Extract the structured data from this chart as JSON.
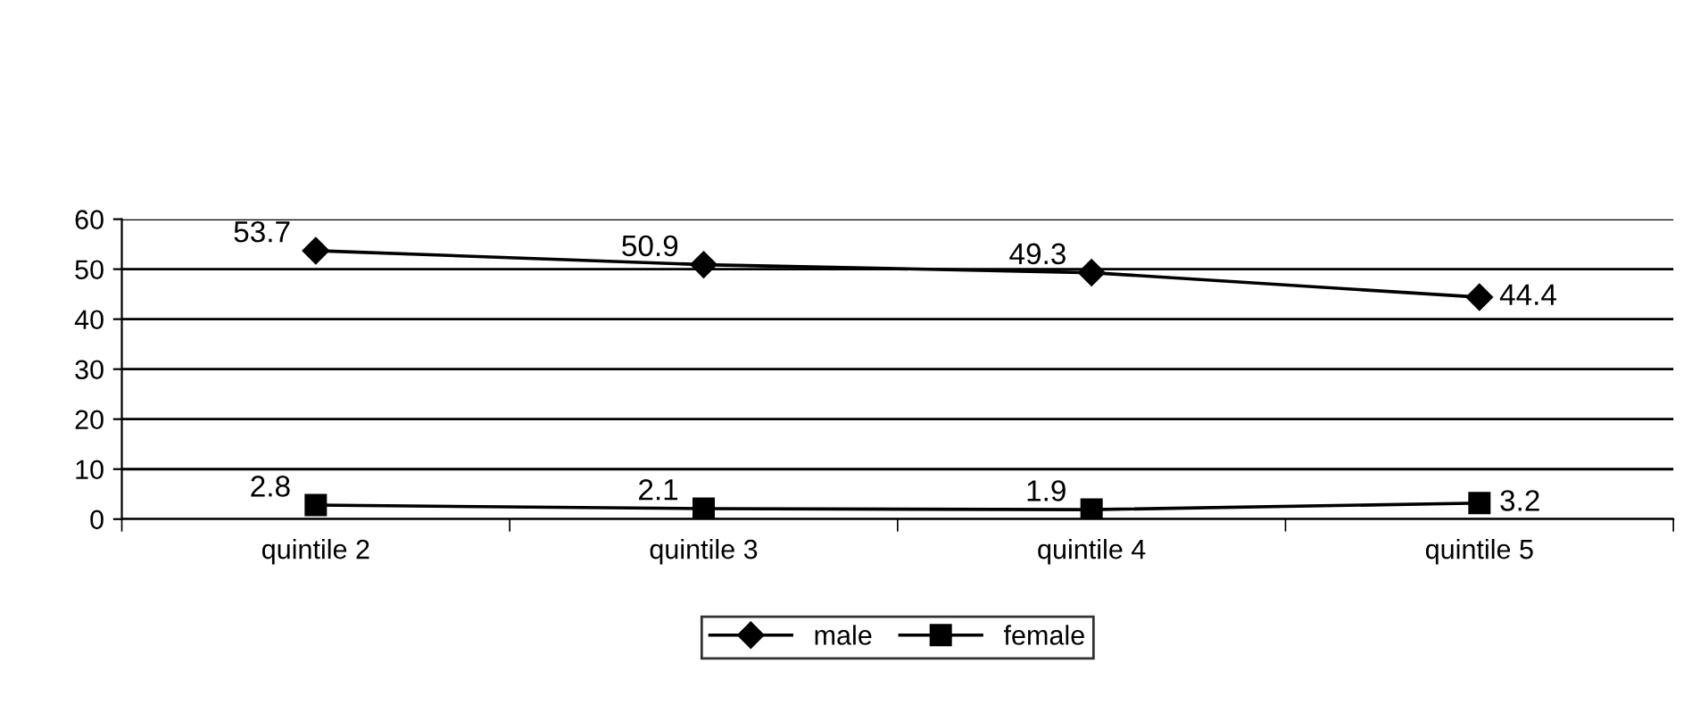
{
  "chart_data": {
    "type": "line",
    "categories": [
      "quintile 2",
      "quintile 3",
      "quintile 4",
      "quintile 5"
    ],
    "series": [
      {
        "name": "male",
        "color": "#000000",
        "marker": "diamond",
        "values": [
          53.7,
          50.9,
          49.3,
          44.4
        ]
      },
      {
        "name": "female",
        "color": "#000000",
        "marker": "square",
        "values": [
          2.8,
          2.1,
          1.9,
          3.2
        ]
      }
    ],
    "ylim": [
      0,
      60
    ],
    "yticks": [
      0,
      10,
      20,
      30,
      40,
      50,
      60
    ],
    "grid": "y",
    "legend": "bottom",
    "data_labels": true,
    "line_style": "solid"
  }
}
